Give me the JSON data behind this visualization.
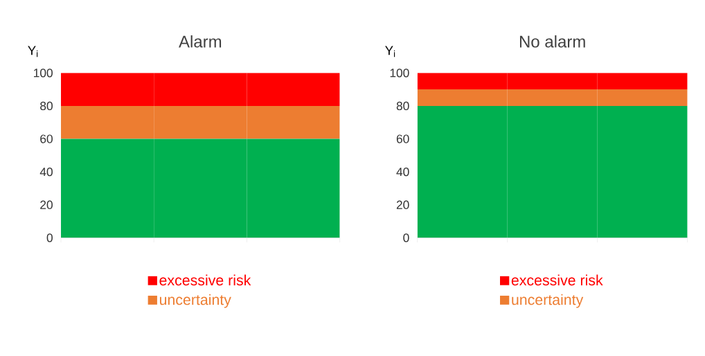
{
  "chart_data": [
    {
      "type": "bar",
      "title": "Alarm",
      "ylabel": "Y$_{i}$",
      "stacked": true,
      "categories": [
        null,
        null,
        null
      ],
      "ylim": [
        0,
        100
      ],
      "yticks": [
        0,
        20,
        40,
        60,
        80,
        100
      ],
      "tick_labels": "y",
      "legend": "bottom",
      "series": [
        {
          "color": "#00b050",
          "values": [
            60,
            60,
            60
          ]
        },
        {
          "name": "uncertainty",
          "color": "#ed7d31",
          "values": [
            20,
            20,
            20
          ]
        },
        {
          "name": "excessive risk",
          "color": "#ff0000",
          "values": [
            20,
            20,
            20
          ]
        }
      ]
    },
    {
      "type": "bar",
      "title": "No alarm",
      "ylabel": "Y$_{i}$",
      "stacked": true,
      "categories": [
        null,
        null,
        null
      ],
      "ylim": [
        0,
        100
      ],
      "yticks": [
        0,
        20,
        40,
        60,
        80,
        100
      ],
      "tick_labels": "y",
      "legend": "bottom",
      "series": [
        {
          "color": "#00b050",
          "values": [
            80,
            80,
            80
          ]
        },
        {
          "name": "uncertainty",
          "color": "#ed7d31",
          "values": [
            10,
            10,
            10
          ]
        },
        {
          "name": "excessive risk",
          "color": "#ff0000",
          "values": [
            10,
            10,
            10
          ]
        }
      ]
    }
  ]
}
